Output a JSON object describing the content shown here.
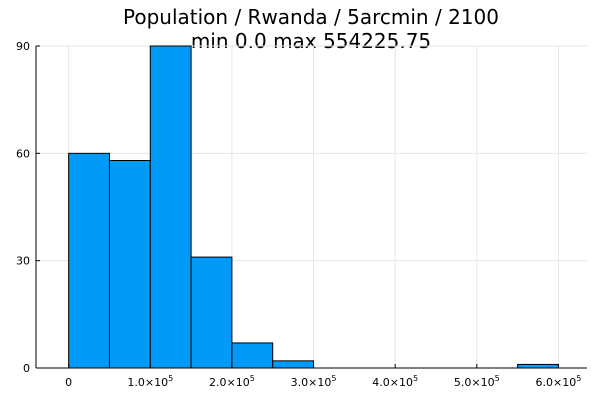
{
  "chart_data": {
    "type": "bar",
    "title_line1": "Population / Rwanda / 5arcmin / 2100",
    "title_line2": "min 0.0  max 554225.75",
    "bin_edges": [
      0,
      50000,
      100000,
      150000,
      200000,
      250000,
      300000,
      350000,
      400000,
      450000,
      500000,
      550000,
      600000
    ],
    "values": [
      60,
      58,
      90,
      31,
      7,
      2,
      0,
      0,
      0,
      0,
      0,
      1
    ],
    "xlim": [
      -40000,
      635000
    ],
    "ylim": [
      0,
      90
    ],
    "x_ticks": [
      {
        "value": 0,
        "label": "0"
      },
      {
        "value": 100000,
        "mantissa": "1.0",
        "base": "×10",
        "exp": "5"
      },
      {
        "value": 200000,
        "mantissa": "2.0",
        "base": "×10",
        "exp": "5"
      },
      {
        "value": 300000,
        "mantissa": "3.0",
        "base": "×10",
        "exp": "5"
      },
      {
        "value": 400000,
        "mantissa": "4.0",
        "base": "×10",
        "exp": "5"
      },
      {
        "value": 500000,
        "mantissa": "5.0",
        "base": "×10",
        "exp": "5"
      },
      {
        "value": 600000,
        "mantissa": "6.0",
        "base": "×10",
        "exp": "5"
      }
    ],
    "y_ticks": [
      {
        "value": 0,
        "label": "0"
      },
      {
        "value": 30,
        "label": "30"
      },
      {
        "value": 60,
        "label": "60"
      },
      {
        "value": 90,
        "label": "90"
      }
    ],
    "grid": true,
    "legend": "none",
    "bar_color": "#009af9"
  }
}
